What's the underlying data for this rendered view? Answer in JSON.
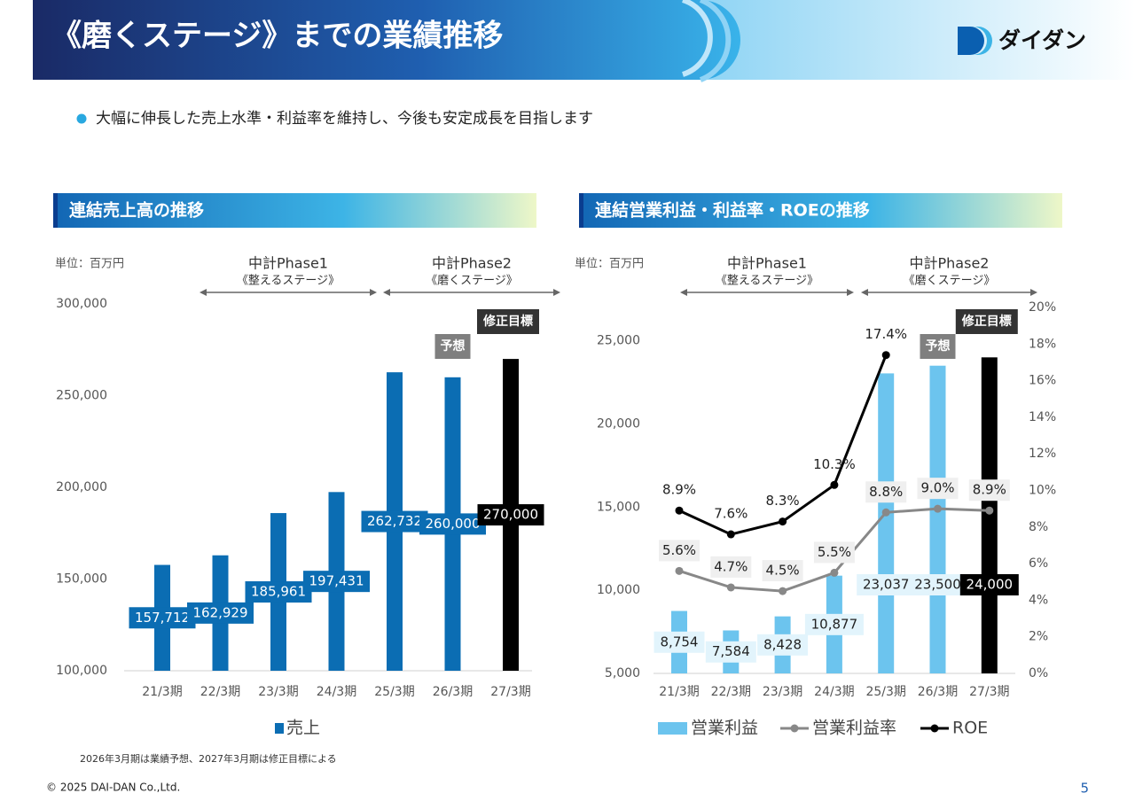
{
  "header": {
    "title": "《磨くステージ》までの業績推移",
    "logo": "ダイダン"
  },
  "bullet": "大幅に伸長した売上水準・利益率を維持し、今後も安定成長を目指します",
  "note": "2026年3月期は業績予想、2027年3月期は修正目標による",
  "footer": {
    "copyright": "© 2025 DAI-DAN Co.,Ltd.",
    "page": 5
  },
  "chart_data": [
    {
      "type": "bar",
      "title": "連結売上高の推移",
      "unit": "単位：百万円",
      "phases": [
        {
          "title": "中計Phase1",
          "subtitle": "《整えるステージ》"
        },
        {
          "title": "中計Phase2",
          "subtitle": "《磨くステージ》"
        }
      ],
      "annotations": [
        {
          "text": "予想",
          "category": "26/3期",
          "color": "#7f7f7f"
        },
        {
          "text": "修正目標",
          "category": "27/3期",
          "color": "#333333"
        }
      ],
      "categories": [
        "21/3期",
        "22/3期",
        "23/3期",
        "24/3期",
        "25/3期",
        "26/3期",
        "27/3期"
      ],
      "series": [
        {
          "name": "売上",
          "type": "bar",
          "color": "#0b6db3",
          "colors": [
            "#0b6db3",
            "#0b6db3",
            "#0b6db3",
            "#0b6db3",
            "#0b6db3",
            "#0b6db3",
            "#000000"
          ],
          "values": [
            157712,
            162929,
            185961,
            197431,
            262732,
            260000,
            270000
          ],
          "value_labels": [
            "157,712",
            "162,929",
            "185,961",
            "197,431",
            "262,732",
            "260,000",
            "270,000"
          ]
        }
      ],
      "ylim": [
        100000,
        300000
      ],
      "yticks": [
        {
          "value": 100000,
          "label": "100,000"
        },
        {
          "value": 150000,
          "label": "150,000"
        },
        {
          "value": 200000,
          "label": "200,000"
        },
        {
          "value": 250000,
          "label": "250,000"
        },
        {
          "value": 300000,
          "label": "300,000"
        }
      ],
      "grid": false,
      "legend": "bottom"
    },
    {
      "type": "combo",
      "title": "連結営業利益・利益率・ROEの推移",
      "unit": "単位：百万円",
      "phases": [
        {
          "title": "中計Phase1",
          "subtitle": "《整えるステージ》"
        },
        {
          "title": "中計Phase2",
          "subtitle": "《磨くステージ》"
        }
      ],
      "annotations": [
        {
          "text": "予想",
          "category": "26/3期",
          "color": "#7f7f7f"
        },
        {
          "text": "修正目標",
          "category": "27/3期",
          "color": "#333333"
        }
      ],
      "categories": [
        "21/3期",
        "22/3期",
        "23/3期",
        "24/3期",
        "25/3期",
        "26/3期",
        "27/3期"
      ],
      "series": [
        {
          "name": "営業利益",
          "type": "bar",
          "color": "#6cc4ee",
          "colors": [
            "#6cc4ee",
            "#6cc4ee",
            "#6cc4ee",
            "#6cc4ee",
            "#6cc4ee",
            "#6cc4ee",
            "#000000"
          ],
          "values": [
            8754,
            7584,
            8428,
            10877,
            23037,
            23500,
            24000
          ],
          "value_labels": [
            "8,754",
            "7,584",
            "8,428",
            "10,877",
            "23,037",
            "23,500",
            "24,000"
          ]
        },
        {
          "name": "営業利益率",
          "type": "line",
          "axis": "y2",
          "color": "#888888",
          "values": [
            5.6,
            4.7,
            4.5,
            5.5,
            8.8,
            9.0,
            8.9
          ],
          "value_labels": [
            "5.6%",
            "4.7%",
            "4.5%",
            "5.5%",
            "8.8%",
            "9.0%",
            "8.9%"
          ]
        },
        {
          "name": "ROE",
          "type": "line",
          "axis": "y2",
          "color": "#000000",
          "values": [
            8.9,
            7.6,
            8.3,
            10.3,
            17.4,
            null,
            null
          ],
          "value_labels": [
            "8.9%",
            "7.6%",
            "8.3%",
            "10.3%",
            "17.4%",
            null,
            null
          ]
        }
      ],
      "ylim": [
        5000,
        27000
      ],
      "yticks": [
        {
          "value": 5000,
          "label": "5,000"
        },
        {
          "value": 10000,
          "label": "10,000"
        },
        {
          "value": 15000,
          "label": "15,000"
        },
        {
          "value": 20000,
          "label": "20,000"
        },
        {
          "value": 25000,
          "label": "25,000"
        }
      ],
      "y2lim": [
        0,
        20
      ],
      "y2ticks": [
        {
          "value": 0,
          "label": "0%"
        },
        {
          "value": 2,
          "label": "2%"
        },
        {
          "value": 4,
          "label": "4%"
        },
        {
          "value": 6,
          "label": "6%"
        },
        {
          "value": 8,
          "label": "8%"
        },
        {
          "value": 10,
          "label": "10%"
        },
        {
          "value": 12,
          "label": "12%"
        },
        {
          "value": 14,
          "label": "14%"
        },
        {
          "value": 16,
          "label": "16%"
        },
        {
          "value": 18,
          "label": "18%"
        },
        {
          "value": 20,
          "label": "20%"
        }
      ],
      "grid": false,
      "legend": "bottom"
    }
  ]
}
